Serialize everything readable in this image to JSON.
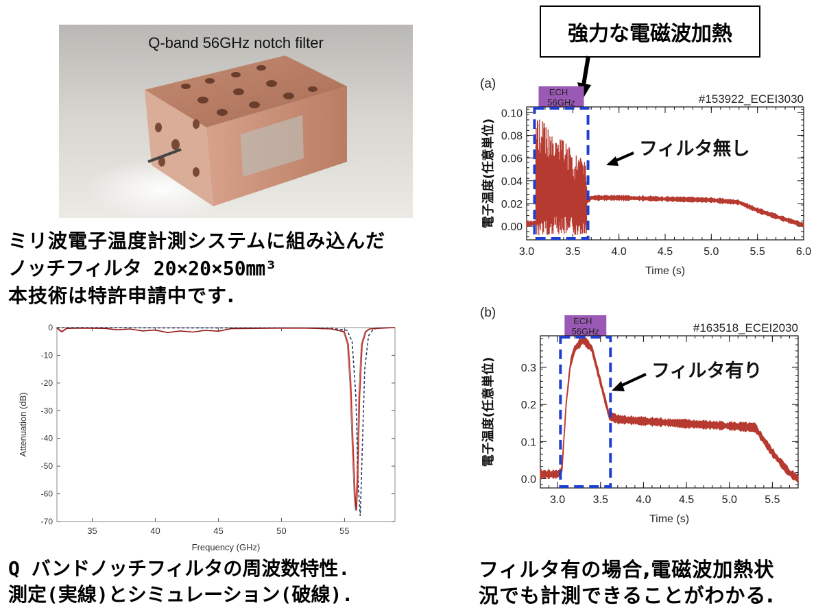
{
  "photo": {
    "caption": "Q-band 56GHz notch filter"
  },
  "left_text": {
    "line1": "ミリ波電子温度計測システムに組み込んだ",
    "line2": "ノッチフィルタ 20×20×50㎜³",
    "line3": "本技術は特許申請中です.",
    "caption1": "Q バンドノッチフィルタの周波数特性.",
    "caption2": "測定(実線)とシミュレーション(破線)."
  },
  "callout": {
    "text": "強力な電磁波加熱"
  },
  "right_text": {
    "caption1": "フィルタ有の場合,電磁波加熱状",
    "caption2": "況でも計測できることがわかる."
  },
  "colors": {
    "measured": "#e0201c",
    "simulated": "#2a3f66",
    "trace": "#b73a30",
    "ech_box": "#9b59b6",
    "dash_box": "#1f3fd1"
  },
  "chart_data": [
    {
      "id": "freq",
      "type": "line",
      "title": "",
      "xlabel": "Frequency (GHz)",
      "ylabel": "Attenuation (dB)",
      "xlim": [
        32.2,
        59
      ],
      "ylim": [
        -70,
        0
      ],
      "xticks": [
        35,
        40,
        45,
        50,
        55
      ],
      "yticks": [
        0,
        -10,
        -20,
        -30,
        -40,
        -50,
        -60,
        -70
      ],
      "series": [
        {
          "name": "Measured",
          "style": "solid",
          "x": [
            32.2,
            32.6,
            33,
            34,
            36,
            37,
            38,
            39,
            40,
            41,
            42,
            43,
            44,
            45,
            46,
            48,
            50,
            52,
            54,
            55,
            55.3,
            55.5,
            55.7,
            55.85,
            55.95,
            56.05,
            56.2,
            56.4,
            56.7,
            57,
            58,
            59
          ],
          "y": [
            0,
            -1.5,
            -0.3,
            -0.2,
            -0.3,
            -0.8,
            -0.5,
            -1.2,
            -0.9,
            -1.8,
            -1.2,
            -1.6,
            -1.0,
            -1.3,
            -0.4,
            -0.3,
            -0.2,
            -0.2,
            -0.5,
            -1.5,
            -6,
            -20,
            -45,
            -62,
            -66,
            -55,
            -25,
            -6,
            -1.5,
            -0.5,
            -0.2,
            0
          ]
        },
        {
          "name": "Simulated",
          "style": "dashed",
          "x": [
            32.2,
            35,
            40,
            45,
            50,
            54,
            55.2,
            55.6,
            55.9,
            56.1,
            56.25,
            56.4,
            56.6,
            56.9,
            57.3,
            58,
            59
          ],
          "y": [
            0,
            0,
            -0.1,
            -0.1,
            -0.1,
            -0.3,
            -1.0,
            -5,
            -25,
            -58,
            -68,
            -45,
            -15,
            -3,
            -0.5,
            -0.1,
            0
          ]
        }
      ]
    },
    {
      "id": "a",
      "panel_label": "(a)",
      "type": "line",
      "title": "#153922_ECEI3030",
      "xlabel": "Time (s)",
      "ylabel": "電子温度(任意単位)",
      "xlim": [
        3.0,
        6.0
      ],
      "ylim": [
        -0.012,
        0.105
      ],
      "xticks": [
        3.0,
        3.5,
        4.0,
        4.5,
        5.0,
        5.5,
        6.0
      ],
      "yticks": [
        0.0,
        0.02,
        0.04,
        0.06,
        0.08,
        0.1
      ],
      "ytick_labels": [
        "0.00",
        "0.02",
        "0.04",
        "0.06",
        "0.08",
        "0.10"
      ],
      "xtick_labels": [
        "3.0",
        "3.5",
        "4.0",
        "4.5",
        "5.0",
        "5.5",
        "6.0"
      ],
      "ech": {
        "label": "ECH",
        "label2": "56GHz",
        "start": 3.1,
        "end": 3.65
      },
      "annotation": "フィルタ無し",
      "trace": {
        "noisy_start": 3.1,
        "noisy_end": 3.65,
        "noisy_lo": -0.008,
        "noisy_hi": 0.09,
        "x": [
          3.0,
          3.1,
          3.65,
          3.7,
          4.0,
          4.5,
          5.0,
          5.3,
          5.5,
          5.8,
          6.0
        ],
        "y": [
          0.002,
          0.003,
          0.022,
          0.025,
          0.025,
          0.024,
          0.023,
          0.021,
          0.014,
          0.006,
          0.001
        ],
        "band": 0.0015
      }
    },
    {
      "id": "b",
      "panel_label": "(b)",
      "type": "line",
      "title": "#163518_ECEI2030",
      "xlabel": "Time (s)",
      "ylabel": "電子温度(任意単位)",
      "xlim": [
        2.8,
        5.8
      ],
      "ylim": [
        -0.025,
        0.385
      ],
      "xticks": [
        3.0,
        3.5,
        4.0,
        4.5,
        5.0,
        5.5
      ],
      "yticks": [
        0.0,
        0.1,
        0.2,
        0.3
      ],
      "ytick_labels": [
        "0.0",
        "0.1",
        "0.2",
        "0.3"
      ],
      "xtick_labels": [
        "3.0",
        "3.5",
        "4.0",
        "4.5",
        "5.0",
        "5.5"
      ],
      "ech": {
        "label": "ECH",
        "label2": "56GHz",
        "start": 3.05,
        "end": 3.6
      },
      "annotation": "フィルタ有り",
      "trace": {
        "x": [
          2.8,
          3.0,
          3.05,
          3.1,
          3.15,
          3.2,
          3.3,
          3.4,
          3.5,
          3.6,
          3.7,
          4.0,
          4.5,
          5.0,
          5.3,
          5.35,
          5.5,
          5.7,
          5.8
        ],
        "y": [
          0.012,
          0.012,
          0.02,
          0.2,
          0.31,
          0.35,
          0.375,
          0.35,
          0.26,
          0.17,
          0.16,
          0.155,
          0.148,
          0.142,
          0.138,
          0.12,
          0.07,
          0.015,
          0.0
        ],
        "band": 0.008
      }
    }
  ]
}
